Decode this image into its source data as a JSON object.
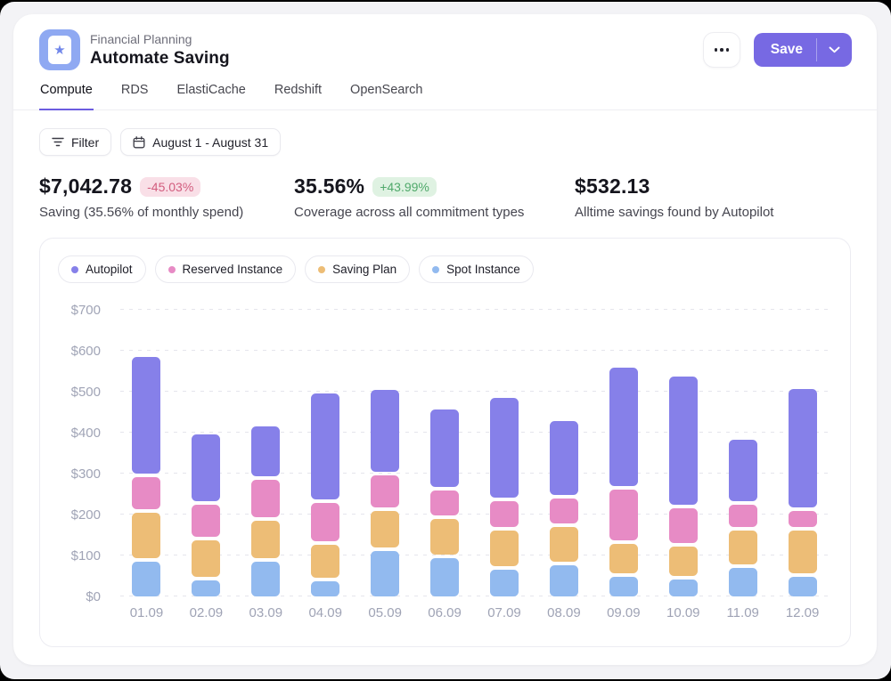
{
  "window": {
    "surface_color": "#F3F3F6",
    "card_color": "#FFFFFF",
    "accent_color": "#7769E3"
  },
  "header": {
    "eyebrow": "Financial Planning",
    "title": "Automate Saving",
    "save_label": "Save",
    "icons": {
      "app": "star-icon",
      "more": "ellipsis-icon",
      "save_dropdown": "chevron-down-icon"
    }
  },
  "tabs": [
    {
      "label": "Compute",
      "active": true
    },
    {
      "label": "RDS",
      "active": false
    },
    {
      "label": "ElastiCache",
      "active": false
    },
    {
      "label": "Redshift",
      "active": false
    },
    {
      "label": "OpenSearch",
      "active": false
    }
  ],
  "toolbar": {
    "filter_label": "Filter",
    "date_range_label": "August 1 - August 31",
    "icons": {
      "filter": "filter-icon",
      "date": "calendar-icon"
    }
  },
  "kpis": [
    {
      "value": "$7,042.78",
      "badge": "-45.03%",
      "badge_type": "negative",
      "caption": "Saving (35.56% of monthly spend)"
    },
    {
      "value": "35.56%",
      "badge": "+43.99%",
      "badge_type": "positive",
      "caption": "Coverage across all commitment types"
    },
    {
      "value": "$532.13",
      "badge": "",
      "badge_type": "none",
      "caption": "Alltime savings found by Autopilot"
    }
  ],
  "chart_data": {
    "type": "bar",
    "stacked": true,
    "title": "",
    "xlabel": "",
    "ylabel": "",
    "categories": [
      "01.09",
      "02.09",
      "03.09",
      "04.09",
      "05.09",
      "06.09",
      "07.09",
      "08.09",
      "09.09",
      "10.09",
      "11.09",
      "12.09"
    ],
    "series": [
      {
        "name": "Autopilot",
        "color": "#8680E9",
        "values": [
          285,
          162,
          122,
          258,
          200,
          190,
          242,
          182,
          289,
          312,
          150,
          288
        ]
      },
      {
        "name": "Reserved Instance",
        "color": "#E78BC5",
        "values": [
          78,
          79,
          90,
          95,
          77,
          60,
          63,
          59,
          124,
          85,
          55,
          40
        ]
      },
      {
        "name": "Saving Plan",
        "color": "#EDBD76",
        "values": [
          110,
          88,
          92,
          80,
          89,
          87,
          87,
          85,
          72,
          72,
          82,
          105
        ]
      },
      {
        "name": "Spot Instance",
        "color": "#92BAEF",
        "values": [
          85,
          40,
          85,
          37,
          112,
          94,
          66,
          77,
          47,
          42,
          70,
          47
        ]
      }
    ],
    "stack_order_bottom_to_top": [
      "Spot Instance",
      "Saving Plan",
      "Reserved Instance",
      "Autopilot"
    ],
    "ylim": [
      0,
      700
    ],
    "yticks": [
      0,
      100,
      200,
      300,
      400,
      500,
      600,
      700
    ],
    "ytick_labels": [
      "$0",
      "$100",
      "$200",
      "$300",
      "$400",
      "$500",
      "$600",
      "$700"
    ],
    "grid": "horizontal-dashed",
    "legend_position": "top"
  }
}
